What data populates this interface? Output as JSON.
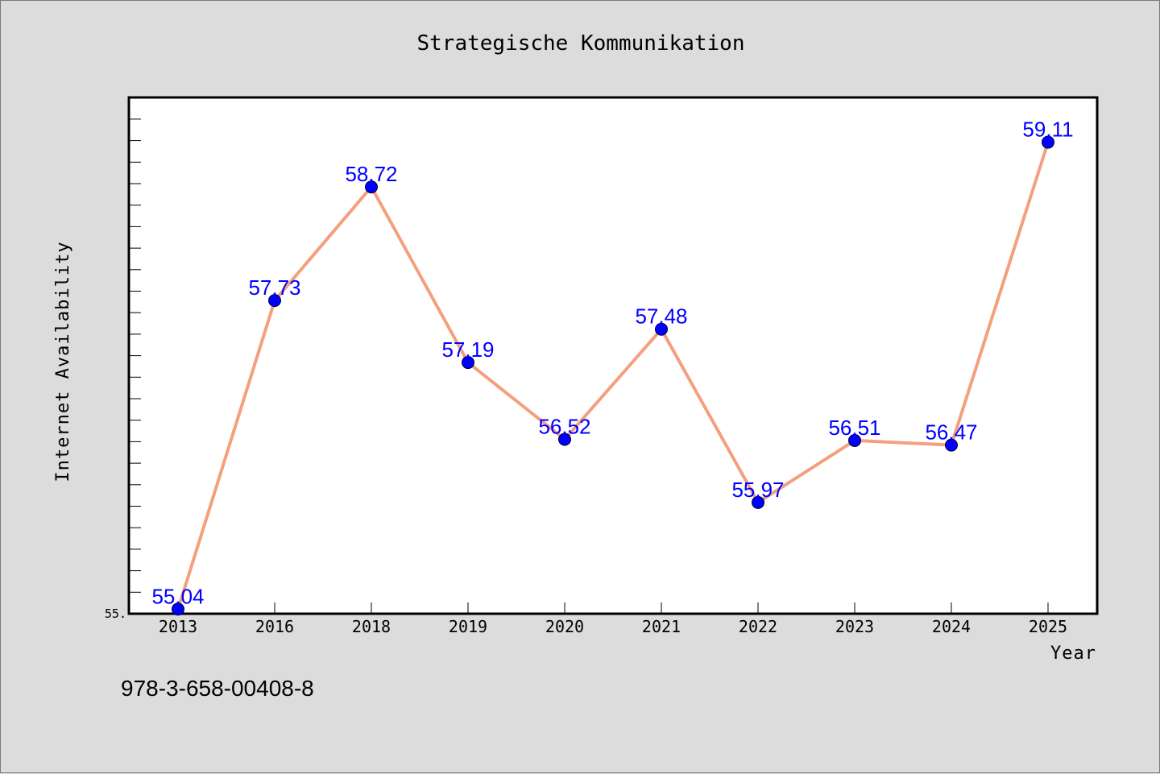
{
  "chart_data": {
    "type": "line",
    "title": "Strategische Kommunikation",
    "xlabel": "Year",
    "ylabel": "Internet Availability",
    "categories": [
      "2013",
      "2016",
      "2018",
      "2019",
      "2020",
      "2021",
      "2022",
      "2023",
      "2024",
      "2025"
    ],
    "series": [
      {
        "values": [
          55.04,
          57.73,
          58.72,
          57.19,
          56.52,
          57.48,
          55.97,
          56.51,
          56.47,
          59.11
        ],
        "labels": [
          "55.04",
          "57.73",
          "58.72",
          "57.19",
          "56.52",
          "57.48",
          "55.97",
          "56.51",
          "56.47",
          "59.11"
        ]
      }
    ],
    "ylim": [
      55.0,
      59.5
    ],
    "yticks_labeled": [
      {
        "value": 55.0,
        "label": "55."
      }
    ],
    "grid": false,
    "line_color": "#f4a07e",
    "marker_color": "#0000ff",
    "label_color": "#0000ff"
  },
  "footer": {
    "isbn": "978-3-658-00408-8"
  }
}
